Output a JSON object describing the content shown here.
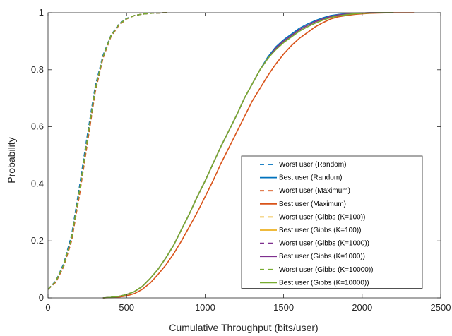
{
  "chart_data": {
    "type": "line",
    "title": "",
    "xlabel": "Cumulative Throughput (bits/user)",
    "ylabel": "Probability",
    "xlim": [
      0,
      2500
    ],
    "ylim": [
      0,
      1
    ],
    "xticks": [
      0,
      500,
      1000,
      1500,
      2000,
      2500
    ],
    "yticks": [
      0,
      0.2,
      0.4,
      0.6,
      0.8,
      1
    ],
    "xtick_labels": [
      "0",
      "500",
      "1000",
      "1500",
      "2000",
      "2500"
    ],
    "ytick_labels": [
      "0",
      "0.2",
      "0.4",
      "0.6",
      "0.8",
      "1"
    ],
    "grid": false,
    "legend_position": "bottom-right",
    "series": [
      {
        "name": "Worst user (Random)",
        "color": "#0072BD",
        "dash": true,
        "x": [
          0,
          50,
          100,
          150,
          200,
          250,
          300,
          350,
          400,
          450,
          500,
          550,
          600,
          650,
          700,
          760
        ],
        "y": [
          0.03,
          0.06,
          0.12,
          0.22,
          0.39,
          0.57,
          0.74,
          0.85,
          0.92,
          0.96,
          0.98,
          0.99,
          0.995,
          0.998,
          0.999,
          1.0
        ]
      },
      {
        "name": "Best user (Random)",
        "color": "#0072BD",
        "dash": false,
        "x": [
          350,
          400,
          450,
          500,
          550,
          600,
          650,
          700,
          750,
          800,
          850,
          900,
          950,
          1000,
          1050,
          1100,
          1150,
          1200,
          1250,
          1300,
          1350,
          1400,
          1450,
          1500,
          1550,
          1600,
          1650,
          1700,
          1750,
          1800,
          1850,
          1900,
          1950,
          2000,
          2050,
          2100,
          2200
        ],
        "y": [
          0.0,
          0.002,
          0.005,
          0.012,
          0.022,
          0.04,
          0.068,
          0.1,
          0.14,
          0.185,
          0.24,
          0.295,
          0.355,
          0.41,
          0.47,
          0.53,
          0.585,
          0.64,
          0.7,
          0.75,
          0.8,
          0.845,
          0.88,
          0.905,
          0.925,
          0.945,
          0.96,
          0.972,
          0.982,
          0.99,
          0.994,
          0.997,
          0.998,
          0.999,
          1.0,
          1.0,
          1.0
        ]
      },
      {
        "name": "Worst user (Maximum)",
        "color": "#D95319",
        "dash": true,
        "x": [
          0,
          50,
          100,
          150,
          200,
          250,
          300,
          350,
          400,
          450,
          500,
          550,
          600,
          650,
          700,
          770
        ],
        "y": [
          0.03,
          0.055,
          0.11,
          0.2,
          0.36,
          0.54,
          0.72,
          0.84,
          0.915,
          0.955,
          0.978,
          0.99,
          0.995,
          0.998,
          0.999,
          1.0
        ]
      },
      {
        "name": "Best user (Maximum)",
        "color": "#D95319",
        "dash": false,
        "x": [
          350,
          400,
          450,
          500,
          550,
          600,
          650,
          700,
          750,
          800,
          850,
          900,
          950,
          1000,
          1050,
          1100,
          1150,
          1200,
          1250,
          1300,
          1350,
          1400,
          1450,
          1500,
          1550,
          1600,
          1650,
          1700,
          1750,
          1800,
          1850,
          1900,
          1950,
          2000,
          2050,
          2100,
          2200,
          2330
        ],
        "y": [
          0.0,
          0.001,
          0.003,
          0.007,
          0.015,
          0.03,
          0.052,
          0.082,
          0.115,
          0.155,
          0.2,
          0.25,
          0.3,
          0.355,
          0.41,
          0.47,
          0.525,
          0.58,
          0.635,
          0.69,
          0.735,
          0.78,
          0.82,
          0.855,
          0.885,
          0.91,
          0.93,
          0.95,
          0.965,
          0.978,
          0.986,
          0.99,
          0.994,
          0.996,
          0.998,
          0.999,
          1.0,
          1.0
        ]
      },
      {
        "name": "Worst user (Gibbs (K=100))",
        "color": "#EDB120",
        "dash": true,
        "x": [
          0,
          50,
          100,
          150,
          200,
          250,
          300,
          350,
          400,
          450,
          500,
          550,
          600,
          650,
          700,
          760
        ],
        "y": [
          0.03,
          0.058,
          0.115,
          0.21,
          0.375,
          0.555,
          0.73,
          0.845,
          0.918,
          0.958,
          0.979,
          0.99,
          0.995,
          0.998,
          0.999,
          1.0
        ]
      },
      {
        "name": "Best user (Gibbs (K=100))",
        "color": "#EDB120",
        "dash": false,
        "x": [
          350,
          400,
          450,
          500,
          550,
          600,
          650,
          700,
          750,
          800,
          850,
          900,
          950,
          1000,
          1050,
          1100,
          1150,
          1200,
          1250,
          1300,
          1350,
          1400,
          1450,
          1500,
          1550,
          1600,
          1650,
          1700,
          1750,
          1800,
          1850,
          1900,
          1950,
          2000,
          2050,
          2100,
          2200
        ],
        "y": [
          0.0,
          0.002,
          0.005,
          0.012,
          0.022,
          0.04,
          0.068,
          0.1,
          0.14,
          0.185,
          0.24,
          0.295,
          0.355,
          0.41,
          0.47,
          0.53,
          0.585,
          0.64,
          0.7,
          0.75,
          0.8,
          0.84,
          0.875,
          0.9,
          0.92,
          0.94,
          0.955,
          0.968,
          0.978,
          0.987,
          0.992,
          0.995,
          0.997,
          0.999,
          1.0,
          1.0,
          1.0
        ]
      },
      {
        "name": "Worst user (Gibbs (K=1000))",
        "color": "#7E2F8E",
        "dash": true,
        "x": [
          0,
          50,
          100,
          150,
          200,
          250,
          300,
          350,
          400,
          450,
          500,
          550,
          600,
          650,
          700,
          760
        ],
        "y": [
          0.03,
          0.058,
          0.115,
          0.21,
          0.375,
          0.555,
          0.73,
          0.845,
          0.918,
          0.958,
          0.979,
          0.99,
          0.995,
          0.998,
          0.999,
          1.0
        ]
      },
      {
        "name": "Best user (Gibbs (K=1000))",
        "color": "#7E2F8E",
        "dash": false,
        "x": [
          350,
          400,
          450,
          500,
          550,
          600,
          650,
          700,
          750,
          800,
          850,
          900,
          950,
          1000,
          1050,
          1100,
          1150,
          1200,
          1250,
          1300,
          1350,
          1400,
          1450,
          1500,
          1550,
          1600,
          1650,
          1700,
          1750,
          1800,
          1850,
          1900,
          1950,
          2000,
          2050,
          2100,
          2200
        ],
        "y": [
          0.0,
          0.002,
          0.005,
          0.012,
          0.022,
          0.04,
          0.068,
          0.1,
          0.14,
          0.185,
          0.24,
          0.295,
          0.355,
          0.41,
          0.47,
          0.53,
          0.585,
          0.64,
          0.7,
          0.75,
          0.8,
          0.84,
          0.875,
          0.9,
          0.92,
          0.94,
          0.955,
          0.968,
          0.978,
          0.987,
          0.992,
          0.995,
          0.997,
          0.999,
          1.0,
          1.0,
          1.0
        ]
      },
      {
        "name": "Worst user (Gibbs (K=10000))",
        "color": "#77AC30",
        "dash": true,
        "x": [
          0,
          50,
          100,
          150,
          200,
          250,
          300,
          350,
          400,
          450,
          500,
          550,
          600,
          650,
          700,
          760
        ],
        "y": [
          0.03,
          0.058,
          0.115,
          0.21,
          0.375,
          0.555,
          0.73,
          0.845,
          0.918,
          0.958,
          0.979,
          0.99,
          0.995,
          0.998,
          0.999,
          1.0
        ]
      },
      {
        "name": "Best user (Gibbs (K=10000))",
        "color": "#77AC30",
        "dash": false,
        "x": [
          350,
          400,
          450,
          500,
          550,
          600,
          650,
          700,
          750,
          800,
          850,
          900,
          950,
          1000,
          1050,
          1100,
          1150,
          1200,
          1250,
          1300,
          1350,
          1400,
          1450,
          1500,
          1550,
          1600,
          1650,
          1700,
          1750,
          1800,
          1850,
          1900,
          1950,
          2000,
          2050,
          2100,
          2200
        ],
        "y": [
          0.0,
          0.002,
          0.005,
          0.012,
          0.022,
          0.04,
          0.068,
          0.1,
          0.14,
          0.185,
          0.24,
          0.295,
          0.355,
          0.41,
          0.47,
          0.53,
          0.585,
          0.64,
          0.7,
          0.75,
          0.8,
          0.84,
          0.87,
          0.895,
          0.915,
          0.935,
          0.95,
          0.963,
          0.974,
          0.983,
          0.989,
          0.993,
          0.996,
          0.998,
          0.999,
          1.0,
          1.0
        ]
      }
    ]
  }
}
